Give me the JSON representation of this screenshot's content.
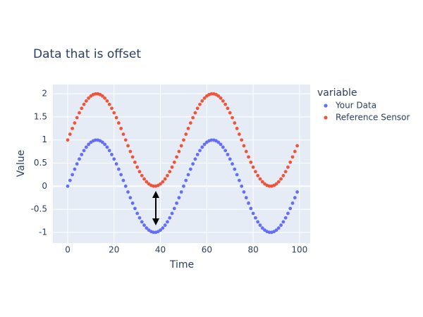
{
  "chart_data": {
    "type": "scatter",
    "title": "Data that is offset",
    "x_label": "Time",
    "y_label": "Value",
    "legend_title": "variable",
    "legend_position": "right",
    "x": [
      0,
      1,
      2,
      3,
      4,
      5,
      6,
      7,
      8,
      9,
      10,
      11,
      12,
      13,
      14,
      15,
      16,
      17,
      18,
      19,
      20,
      21,
      22,
      23,
      24,
      25,
      26,
      27,
      28,
      29,
      30,
      31,
      32,
      33,
      34,
      35,
      36,
      37,
      38,
      39,
      40,
      41,
      42,
      43,
      44,
      45,
      46,
      47,
      48,
      49,
      50,
      51,
      52,
      53,
      54,
      55,
      56,
      57,
      58,
      59,
      60,
      61,
      62,
      63,
      64,
      65,
      66,
      67,
      68,
      69,
      70,
      71,
      72,
      73,
      74,
      75,
      76,
      77,
      78,
      79,
      80,
      81,
      82,
      83,
      84,
      85,
      86,
      87,
      88,
      89,
      90,
      91,
      92,
      93,
      94,
      95,
      96,
      97,
      98,
      99
    ],
    "series": [
      {
        "name": "Your Data",
        "color": "#636efa",
        "values": [
          0,
          0.125,
          0.249,
          0.368,
          0.482,
          0.588,
          0.685,
          0.771,
          0.844,
          0.905,
          0.951,
          0.982,
          0.998,
          0.998,
          0.982,
          0.951,
          0.905,
          0.844,
          0.771,
          0.685,
          0.588,
          0.482,
          0.368,
          0.249,
          0.125,
          0,
          -0.125,
          -0.249,
          -0.368,
          -0.482,
          -0.588,
          -0.685,
          -0.771,
          -0.844,
          -0.905,
          -0.951,
          -0.982,
          -0.998,
          -0.998,
          -0.982,
          -0.951,
          -0.905,
          -0.844,
          -0.771,
          -0.685,
          -0.588,
          -0.482,
          -0.368,
          -0.249,
          -0.125,
          0,
          0.125,
          0.249,
          0.368,
          0.482,
          0.588,
          0.685,
          0.771,
          0.844,
          0.905,
          0.951,
          0.982,
          0.998,
          0.998,
          0.982,
          0.951,
          0.905,
          0.844,
          0.771,
          0.685,
          0.588,
          0.482,
          0.368,
          0.249,
          0.125,
          0,
          -0.125,
          -0.249,
          -0.368,
          -0.482,
          -0.588,
          -0.685,
          -0.771,
          -0.844,
          -0.905,
          -0.951,
          -0.982,
          -0.998,
          -0.998,
          -0.982,
          -0.951,
          -0.905,
          -0.844,
          -0.771,
          -0.685,
          -0.588,
          -0.482,
          -0.368,
          -0.249,
          -0.125
        ]
      },
      {
        "name": "Reference Sensor",
        "color": "#ef553b",
        "values": [
          1,
          1.125,
          1.249,
          1.368,
          1.482,
          1.588,
          1.685,
          1.771,
          1.844,
          1.905,
          1.951,
          1.982,
          1.998,
          1.998,
          1.982,
          1.951,
          1.905,
          1.844,
          1.771,
          1.685,
          1.588,
          1.482,
          1.368,
          1.249,
          1.125,
          1,
          0.875,
          0.751,
          0.632,
          0.518,
          0.412,
          0.315,
          0.229,
          0.156,
          0.095,
          0.049,
          0.018,
          0.002,
          0.002,
          0.018,
          0.049,
          0.095,
          0.156,
          0.229,
          0.315,
          0.412,
          0.518,
          0.632,
          0.751,
          0.875,
          1,
          1.125,
          1.249,
          1.368,
          1.482,
          1.588,
          1.685,
          1.771,
          1.844,
          1.905,
          1.951,
          1.982,
          1.998,
          1.998,
          1.982,
          1.951,
          1.905,
          1.844,
          1.771,
          1.685,
          1.588,
          1.482,
          1.368,
          1.249,
          1.125,
          1,
          0.875,
          0.751,
          0.632,
          0.518,
          0.412,
          0.315,
          0.229,
          0.156,
          0.095,
          0.049,
          0.018,
          0.002,
          0.002,
          0.018,
          0.049,
          0.095,
          0.156,
          0.229,
          0.315,
          0.412,
          0.518,
          0.632,
          0.751,
          0.875
        ]
      }
    ],
    "xlim": [
      -6.4,
      104.6
    ],
    "ylim": [
      -1.23,
      2.2
    ],
    "xticks": [
      0,
      20,
      40,
      60,
      80,
      100
    ],
    "yticks": [
      -1,
      -0.5,
      0,
      0.5,
      1,
      1.5,
      2
    ],
    "grid": true
  }
}
